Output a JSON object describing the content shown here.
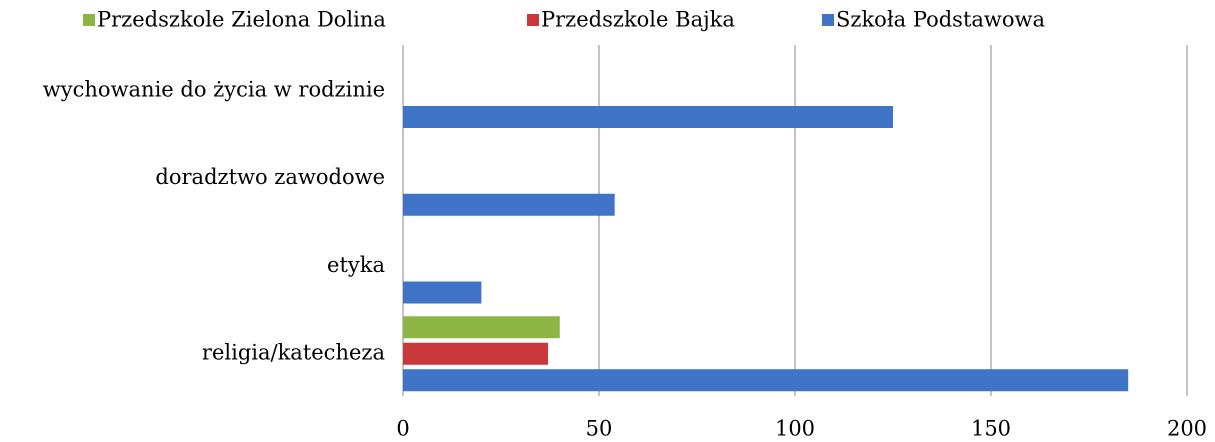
{
  "chart_data": {
    "type": "bar",
    "orientation": "horizontal",
    "categories": [
      "religia/katecheza",
      "etyka",
      "doradztwo zawodowe",
      "wychowanie do życia w rodzinie"
    ],
    "series": [
      {
        "name": "Przedszkole Zielona Dolina",
        "color": "#8db544",
        "values": [
          40,
          null,
          null,
          null
        ]
      },
      {
        "name": "Przedszkole Bajka",
        "color": "#c9383a",
        "values": [
          37,
          null,
          null,
          null
        ]
      },
      {
        "name": "Szkoła Podstawowa",
        "color": "#3f74c6",
        "values": [
          185,
          20,
          54,
          125
        ]
      }
    ],
    "xlim": [
      0,
      200
    ],
    "xticks": [
      0,
      50,
      100,
      150,
      200
    ],
    "grid": true,
    "legend": "top"
  }
}
